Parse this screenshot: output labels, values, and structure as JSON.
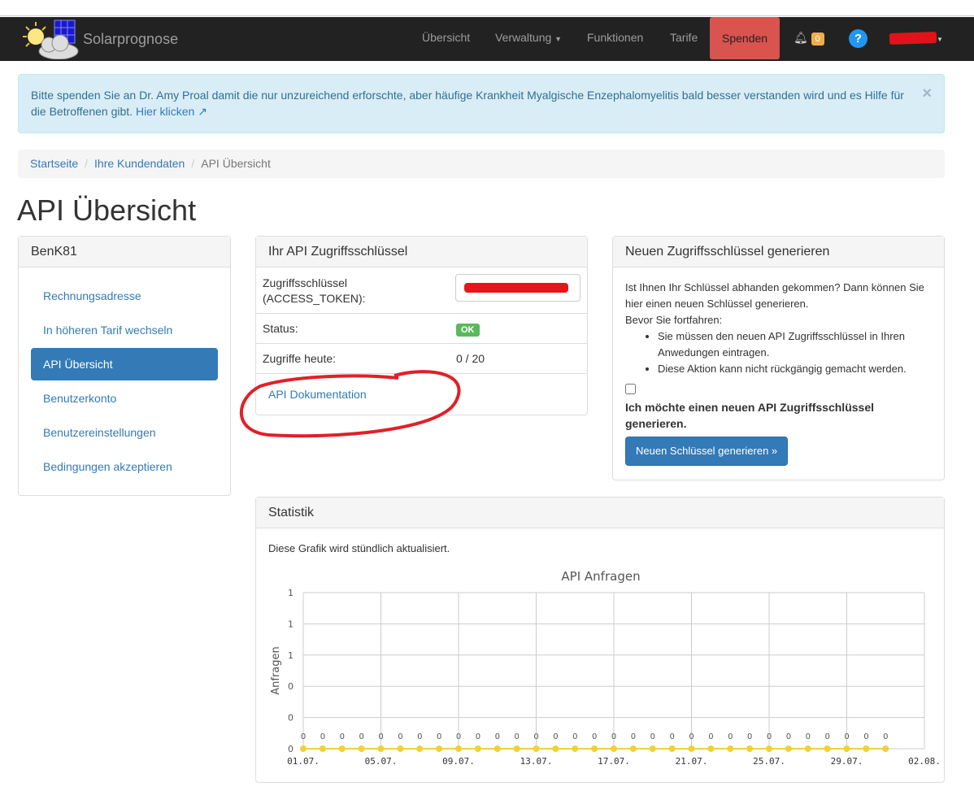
{
  "navbar": {
    "brand": "Solarprognose",
    "items": [
      "Übersicht",
      "Verwaltung",
      "Funktionen",
      "Tarife"
    ],
    "spenden": "Spenden",
    "notification_count": "0",
    "help": "?",
    "spenden_color": "#d9534f"
  },
  "alert": {
    "text": "Bitte spenden Sie an Dr. Amy Proal damit die nur unzureichend erforschte, aber häufige Krankheit Myalgische Enzephalomyelitis bald besser verstanden wird und es Hilfe für die Betroffenen gibt.",
    "link": "Hier klicken",
    "close": "×"
  },
  "breadcrumb": [
    "Startseite",
    "Ihre Kundendaten",
    "API Übersicht"
  ],
  "page_title": "API Übersicht",
  "sidebar": {
    "title": "BenK81",
    "items": [
      "Rechnungsadresse",
      "In höheren Tarif wechseln",
      "API Übersicht",
      "Benutzerkonto",
      "Benutzereinstellungen",
      "Bedingungen akzeptieren"
    ],
    "active": 2
  },
  "api_key": {
    "title": "Ihr API Zugriffsschlüssel",
    "key_label": "Zugriffsschlüssel (ACCESS_TOKEN):",
    "status_label": "Status:",
    "status_value": "OK",
    "usage_label": "Zugriffe heute:",
    "usage_value": "0 / 20",
    "docs_link": "API Dokumentation"
  },
  "new_key": {
    "title": "Neuen Zugriffsschlüssel generieren",
    "intro": "Ist Ihnen Ihr Schlüssel abhanden gekommen? Dann können Sie hier einen neuen Schlüssel generieren.",
    "before": "Bevor Sie fortfahren:",
    "bullets": [
      "Sie müssen den neuen API Zugriffsschlüssel in Ihren Anwedungen eintragen.",
      "Diese Aktion kann nicht rückgängig gemacht werden."
    ],
    "checkbox_label": "Ich möchte einen neuen API Zugriffsschlüssel generieren.",
    "checked": false,
    "button": "Neuen Schlüssel generieren »"
  },
  "stats": {
    "title": "Statistik",
    "note": "Diese Grafik wird stündlich aktualisiert."
  },
  "chart_data": {
    "type": "line",
    "title": "API Anfragen",
    "ylabel": "Anfragen",
    "xlabel": "",
    "x_tick_labels": [
      "01.07.",
      "05.07.",
      "09.07.",
      "13.07.",
      "17.07.",
      "21.07.",
      "25.07.",
      "29.07.",
      "02.08."
    ],
    "y_tick_labels": [
      "0",
      "0",
      "0",
      "1",
      "1",
      "1"
    ],
    "ylim": [
      0,
      1
    ],
    "grid": true,
    "color": "#f0d040",
    "x": [
      "01.07.",
      "02.07.",
      "03.07.",
      "04.07.",
      "05.07.",
      "06.07.",
      "07.07.",
      "08.07.",
      "09.07.",
      "10.07.",
      "11.07.",
      "12.07.",
      "13.07.",
      "14.07.",
      "15.07.",
      "16.07.",
      "17.07.",
      "18.07.",
      "19.07.",
      "20.07.",
      "21.07.",
      "22.07.",
      "23.07.",
      "24.07.",
      "25.07.",
      "26.07.",
      "27.07.",
      "28.07.",
      "29.07.",
      "30.07.",
      "31.07."
    ],
    "values": [
      0,
      0,
      0,
      0,
      0,
      0,
      0,
      0,
      0,
      0,
      0,
      0,
      0,
      0,
      0,
      0,
      0,
      0,
      0,
      0,
      0,
      0,
      0,
      0,
      0,
      0,
      0,
      0,
      0,
      0,
      0
    ]
  }
}
